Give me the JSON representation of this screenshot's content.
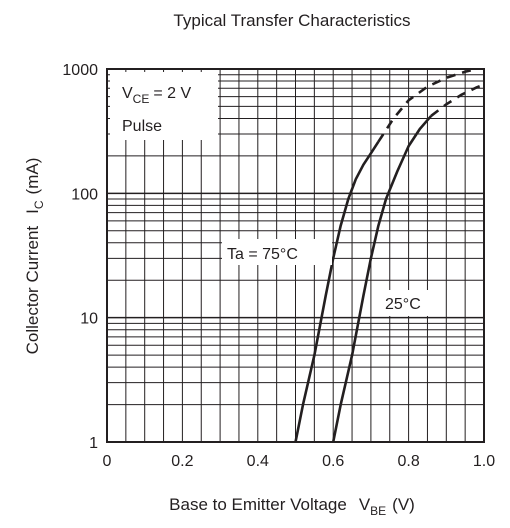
{
  "chart_data": {
    "type": "line",
    "title": "Typical Transfer Characteristics",
    "xlabel": {
      "main": "Base to Emitter Voltage",
      "symbol": "V",
      "subscript": "BE",
      "unit": "(V)"
    },
    "ylabel": {
      "main": "Collector Current",
      "symbol": "I",
      "subscript": "C",
      "unit": "(mA)"
    },
    "xlim": [
      0,
      1.0
    ],
    "ylim": [
      1,
      1000
    ],
    "yscale": "log",
    "grid": true,
    "x_ticks": [
      "0",
      "0.2",
      "0.4",
      "0.6",
      "0.8",
      "1.0"
    ],
    "y_ticks": [
      "1",
      "10",
      "100",
      "1000"
    ],
    "conditions": {
      "vce_symbol": "V",
      "vce_subscript": "CE",
      "vce_value": "= 2 V",
      "mode": "Pulse"
    },
    "series": [
      {
        "name": "Ta = 75°C",
        "solid": [
          [
            0.5,
            1
          ],
          [
            0.52,
            2
          ],
          [
            0.55,
            5
          ],
          [
            0.58,
            15
          ],
          [
            0.6,
            30
          ],
          [
            0.62,
            55
          ],
          [
            0.64,
            90
          ],
          [
            0.66,
            130
          ],
          [
            0.68,
            170
          ],
          [
            0.7,
            210
          ],
          [
            0.72,
            260
          ]
        ],
        "dashed": [
          [
            0.72,
            260
          ],
          [
            0.76,
            400
          ],
          [
            0.8,
            560
          ],
          [
            0.85,
            720
          ],
          [
            0.9,
            850
          ],
          [
            0.95,
            950
          ],
          [
            0.98,
            1000
          ]
        ]
      },
      {
        "name": "25°C",
        "solid": [
          [
            0.6,
            1
          ],
          [
            0.62,
            2
          ],
          [
            0.65,
            5
          ],
          [
            0.68,
            15
          ],
          [
            0.7,
            30
          ],
          [
            0.72,
            55
          ],
          [
            0.74,
            90
          ],
          [
            0.77,
            150
          ],
          [
            0.8,
            240
          ],
          [
            0.83,
            330
          ],
          [
            0.86,
            420
          ]
        ],
        "dashed": [
          [
            0.86,
            420
          ],
          [
            0.9,
            520
          ],
          [
            0.94,
            620
          ],
          [
            0.98,
            710
          ],
          [
            1.0,
            750
          ]
        ]
      }
    ]
  }
}
